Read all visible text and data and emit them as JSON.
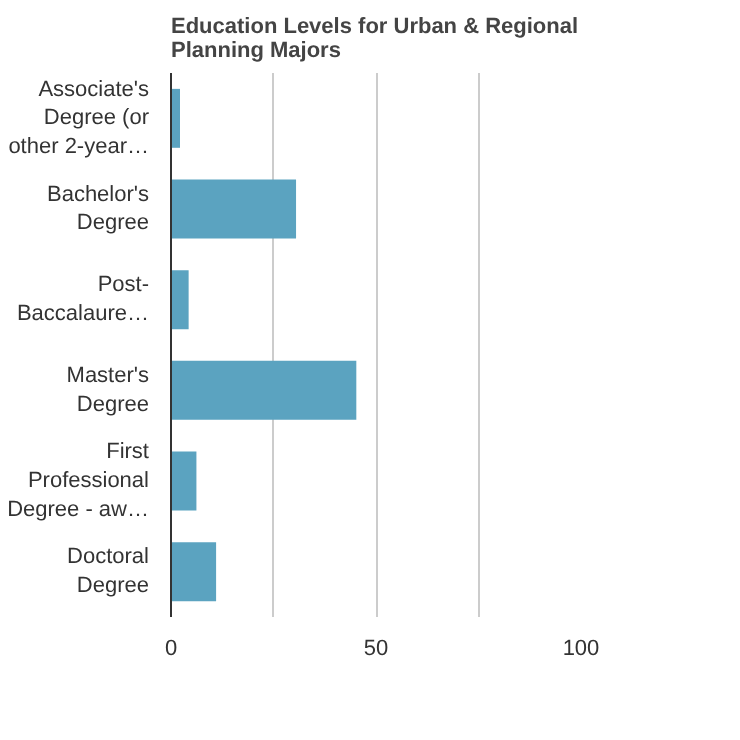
{
  "chart_data": {
    "type": "bar",
    "orientation": "horizontal",
    "title": "Education Levels for Urban & Regional Planning Majors",
    "categories": [
      "Associate's Degree (or other 2-year…",
      "Bachelor's Degree",
      "Post-Baccalaure…",
      "Master's Degree",
      "First Professional Degree - aw…",
      "Doctoral Degree"
    ],
    "values": [
      2.2,
      30.5,
      4.3,
      45.2,
      6.2,
      11.0
    ],
    "color": "#5ba3c0",
    "xlim": [
      0,
      100
    ],
    "xticks": [
      0,
      {
        "value": 25,
        "label": null
      },
      50,
      {
        "value": 75,
        "label": null
      },
      100
    ],
    "grid": "x"
  }
}
